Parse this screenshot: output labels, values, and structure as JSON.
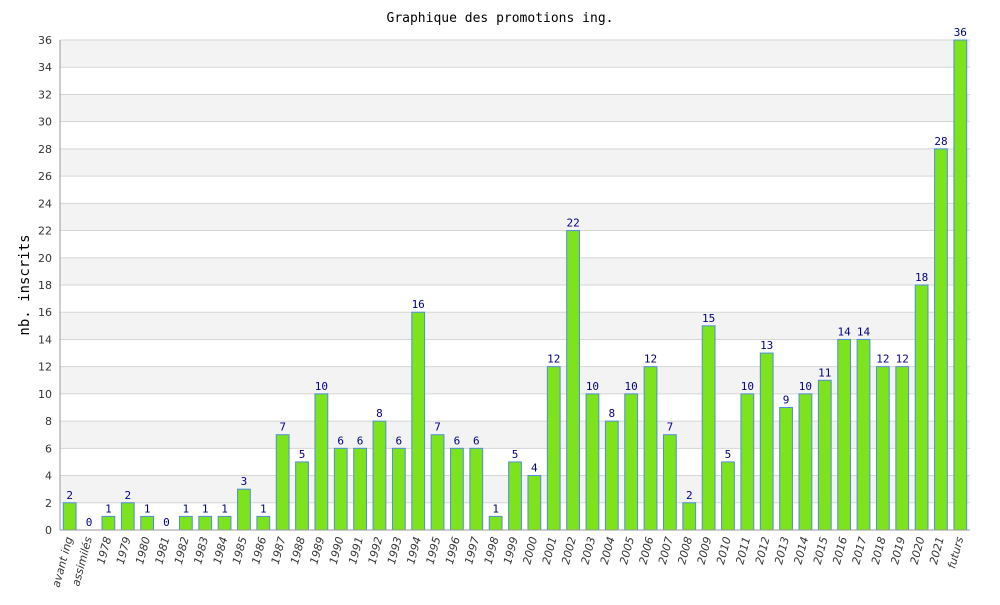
{
  "chart_data": {
    "type": "bar",
    "title": "Graphique des promotions ing.",
    "xlabel": "",
    "ylabel": "nb. inscrits",
    "ylim": [
      0,
      36
    ],
    "ytick_step": 2,
    "grid": true,
    "categories": [
      "avant ing",
      "assimilés",
      "1978",
      "1979",
      "1980",
      "1981",
      "1982",
      "1983",
      "1984",
      "1985",
      "1986",
      "1987",
      "1988",
      "1989",
      "1990",
      "1991",
      "1992",
      "1993",
      "1994",
      "1995",
      "1996",
      "1997",
      "1998",
      "1999",
      "2000",
      "2001",
      "2002",
      "2003",
      "2004",
      "2005",
      "2006",
      "2007",
      "2008",
      "2009",
      "2010",
      "2011",
      "2012",
      "2013",
      "2014",
      "2015",
      "2016",
      "2017",
      "2018",
      "2019",
      "2020",
      "2021",
      "futurs"
    ],
    "values": [
      2,
      0,
      1,
      2,
      1,
      0,
      1,
      1,
      1,
      3,
      1,
      7,
      5,
      10,
      6,
      6,
      8,
      6,
      16,
      7,
      6,
      6,
      1,
      5,
      4,
      12,
      22,
      10,
      8,
      10,
      12,
      7,
      2,
      15,
      5,
      10,
      13,
      9,
      10,
      11,
      14,
      14,
      12,
      12,
      18,
      28,
      36
    ],
    "colors": {
      "bar_fill": "#7de31c",
      "bar_stroke": "#4f8fd8",
      "label_color": "#000080",
      "band_color": "#f3f3f3",
      "grid_color": "#d6d6d6"
    }
  }
}
